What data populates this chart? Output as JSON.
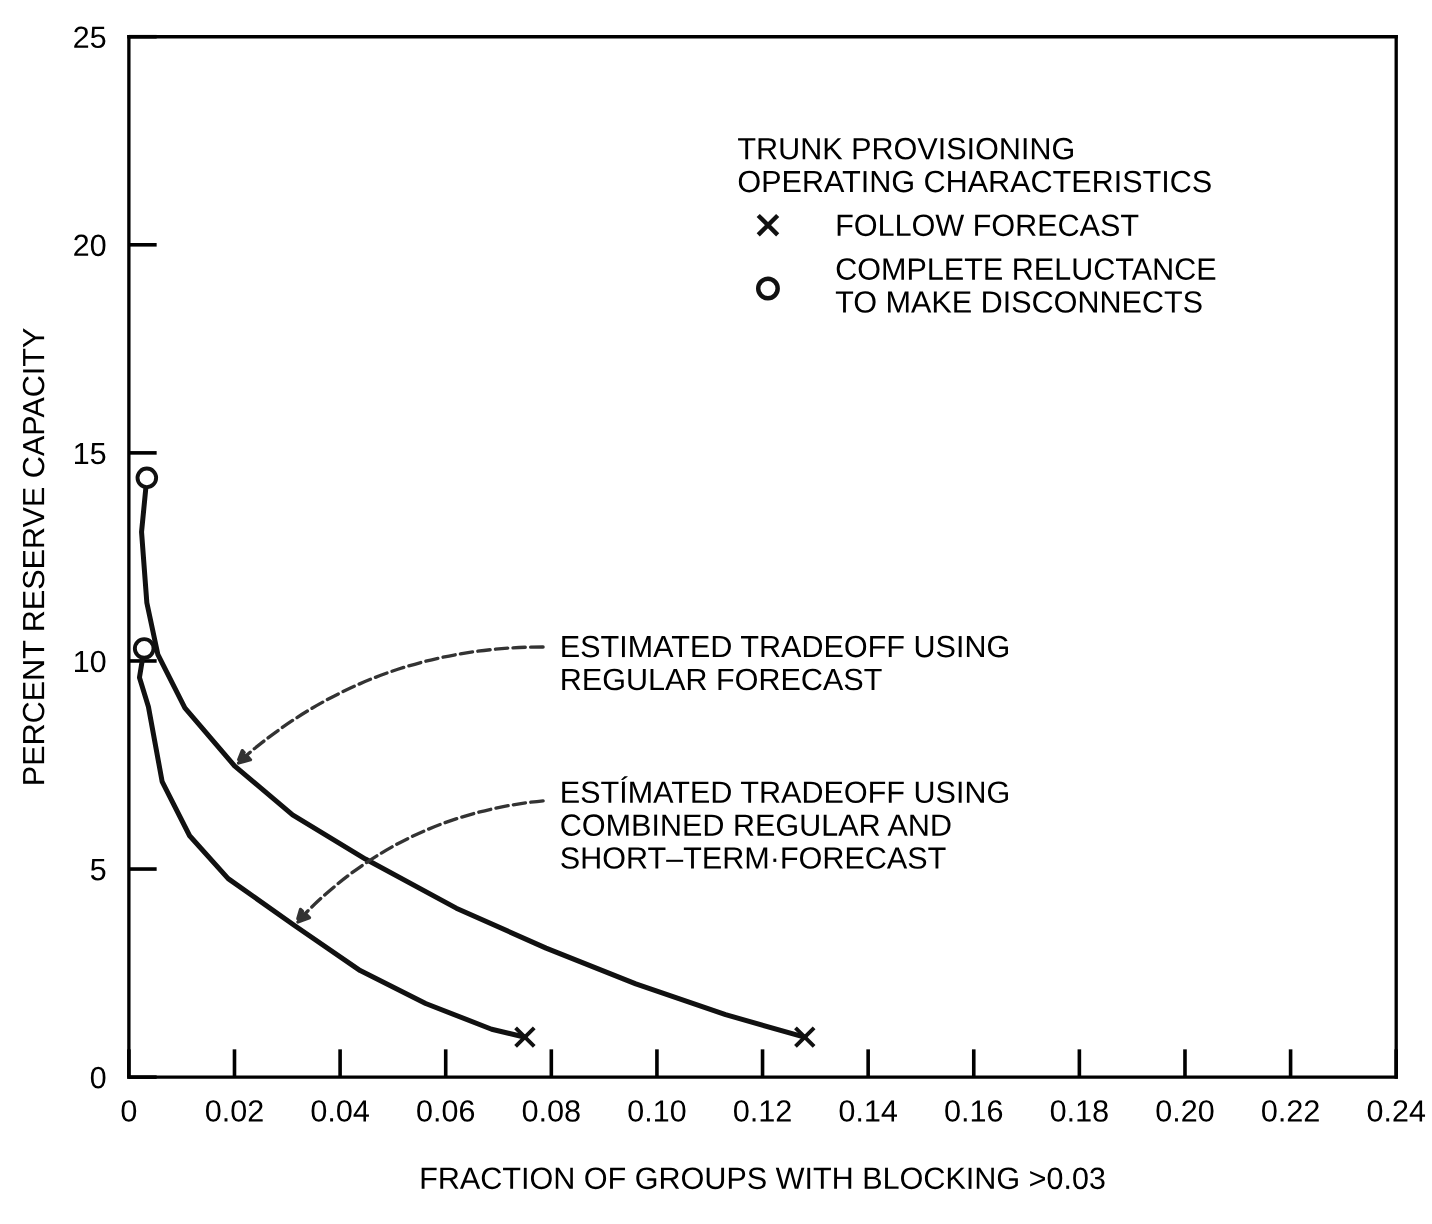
{
  "chart_data": {
    "type": "line",
    "xlabel": "FRACTION OF GROUPS WITH BLOCKING >0.03",
    "ylabel": "PERCENT RESERVE CAPACITY",
    "legend_title": "TRUNK PROVISIONING\nOPERATING CHARACTERISTICS",
    "series": [
      {
        "color": "#111111",
        "x": [
          0.0034,
          0.0024,
          0.0034,
          0.0055,
          0.0106,
          0.02,
          0.031,
          0.0448,
          0.062,
          0.079,
          0.096,
          0.113,
          0.128
        ],
        "values": [
          14.4,
          13.1,
          11.4,
          10.15,
          8.87,
          7.48,
          6.3,
          5.24,
          4.06,
          3.1,
          2.24,
          1.5,
          0.96
        ]
      },
      {
        "color": "#111111",
        "x": [
          0.0029,
          0.002,
          0.0037,
          0.0063,
          0.0115,
          0.0188,
          0.0313,
          0.0438,
          0.0562,
          0.0687,
          0.075
        ],
        "values": [
          10.3,
          9.6,
          8.9,
          7.1,
          5.8,
          4.77,
          3.65,
          2.56,
          1.77,
          1.15,
          0.96
        ]
      },
      {
        "type": "scatter",
        "name": "FOLLOW FORECAST",
        "marker": "cross",
        "color": "#111111",
        "x": [
          0.075,
          0.128
        ],
        "values": [
          0.96,
          0.96
        ]
      },
      {
        "type": "scatter",
        "name": "COMPLETE RELUCTANCE\nTO MAKE DISCONNECTS",
        "marker": "circle",
        "color": "#111111",
        "x": [
          0.0034,
          0.0029
        ],
        "values": [
          14.4,
          10.3
        ]
      }
    ],
    "xlim": [
      0,
      0.24
    ],
    "xticks": [
      0,
      0.02,
      0.04,
      0.06,
      {
        "value": 0.08,
        "label": "0.08"
      },
      {
        "value": 0.1,
        "label": "0.10"
      },
      0.12,
      0.14,
      0.16,
      0.18,
      {
        "value": 0.2,
        "label": "0.20"
      },
      0.22,
      0.24
    ],
    "ylim": [
      0,
      25
    ],
    "yticks": [
      0,
      5,
      10,
      15,
      20,
      25
    ],
    "grid": false,
    "legend": "top right",
    "annotations": [
      {
        "text": "ESTIMATED TRADEOFF USING\nREGULAR FORECAST",
        "x": 0.02,
        "y": 7.48
      },
      {
        "text": "ESTÍMATED TRADEOFF USING\nCOMBINED REGULAR AND\nSHORT–TERM·FORECAST",
        "x": 0.0313,
        "y": 3.65
      }
    ]
  }
}
